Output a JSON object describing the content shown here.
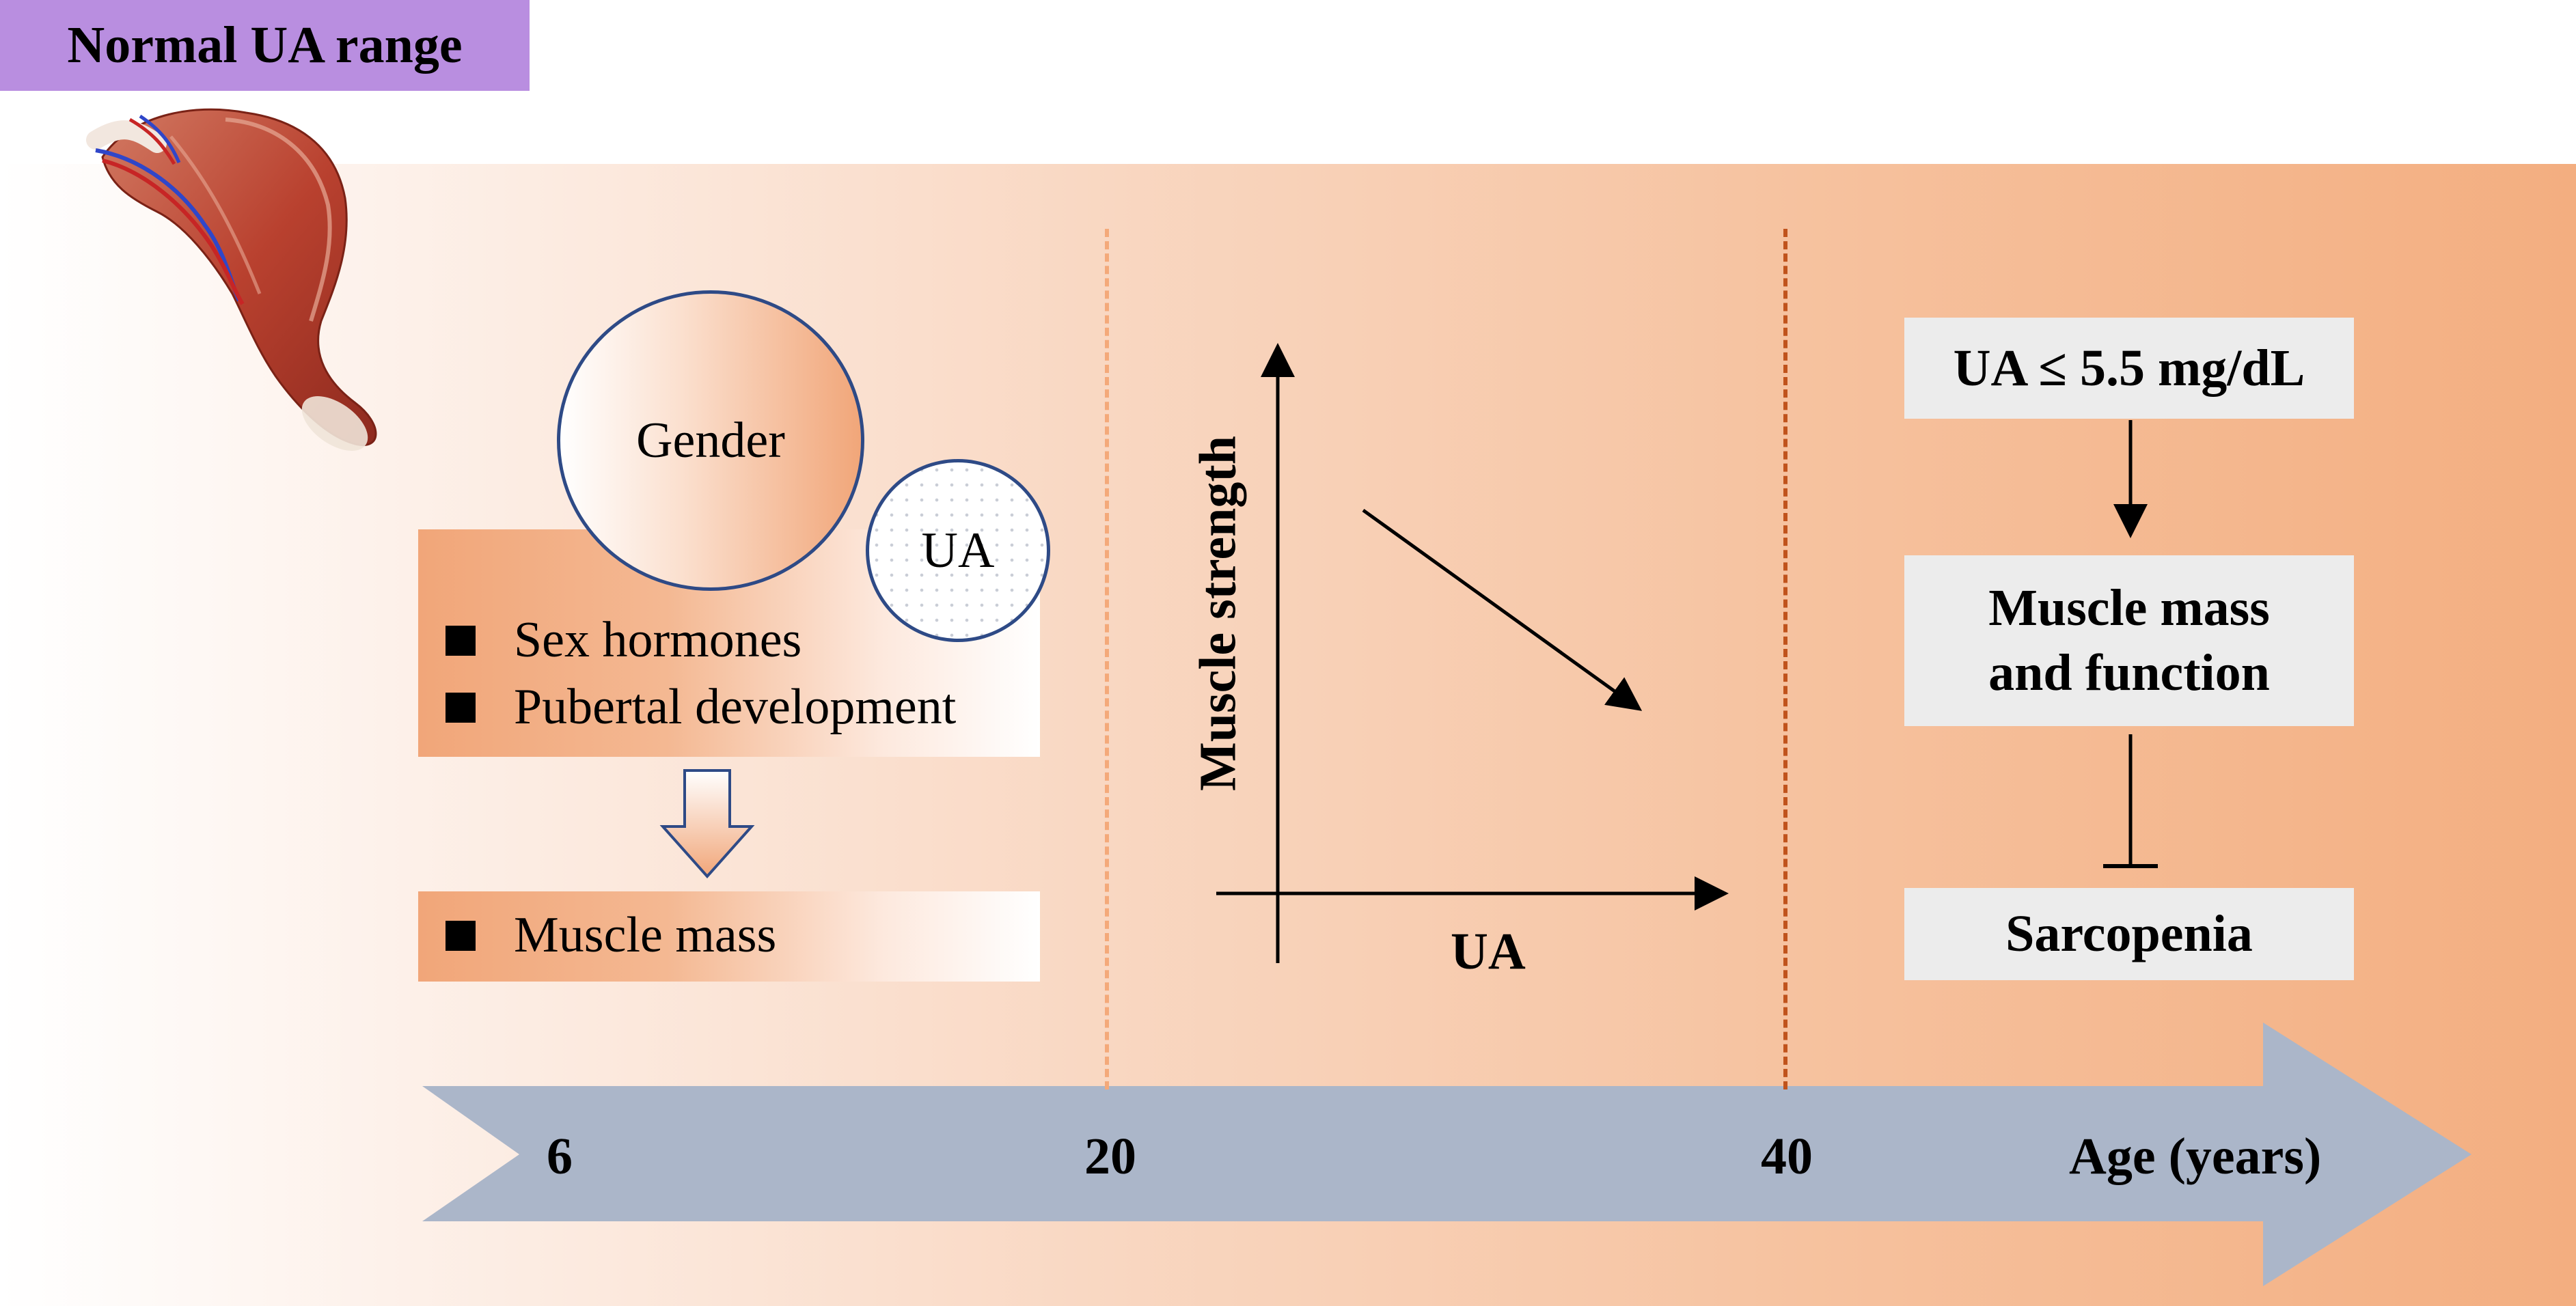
{
  "title_badge": "Normal UA range",
  "left_panel": {
    "gender_label": "Gender",
    "ua_label": "UA",
    "factors": [
      "Sex hormones",
      "Pubertal development"
    ],
    "outcome": "Muscle mass"
  },
  "middle_panel": {
    "y_axis_label": "Muscle strength",
    "x_axis_label": "UA"
  },
  "right_panel": {
    "threshold": "UA ≤ 5.5 mg/dL",
    "function_line1": "Muscle mass",
    "function_line2": "and function",
    "condition": "Sarcopenia"
  },
  "timeline": {
    "ticks": [
      "6",
      "20",
      "40"
    ],
    "axis_label": "Age (years)"
  },
  "colors": {
    "badge": "#b98ee0",
    "timeline_arrow": "#abb6c9",
    "accent_orange": "#f1a679",
    "circle_border": "#2e4a86"
  }
}
